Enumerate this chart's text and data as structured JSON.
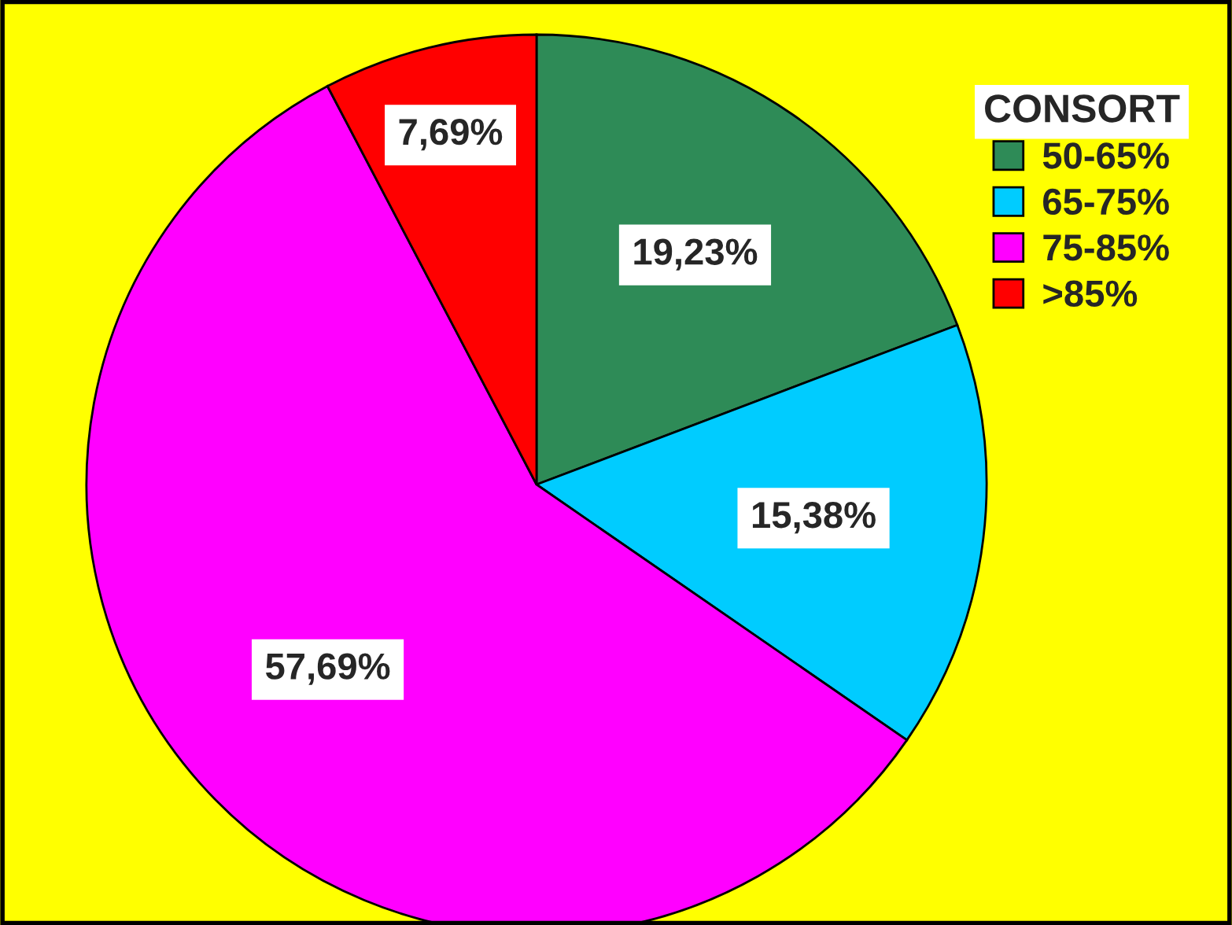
{
  "chart_data": {
    "type": "pie",
    "legend_title": "CONSORT",
    "legend": "top right",
    "categories": [
      "50-65%",
      "65-75%",
      "75-85%",
      ">85%"
    ],
    "values": [
      19.23,
      15.38,
      57.69,
      7.69
    ],
    "value_labels": [
      "19,23%",
      "15,38%",
      "57,69%",
      "7,69%"
    ],
    "colors": [
      "#2e8b57",
      "#00ccff",
      "#ff00ff",
      "#ff0000"
    ]
  }
}
